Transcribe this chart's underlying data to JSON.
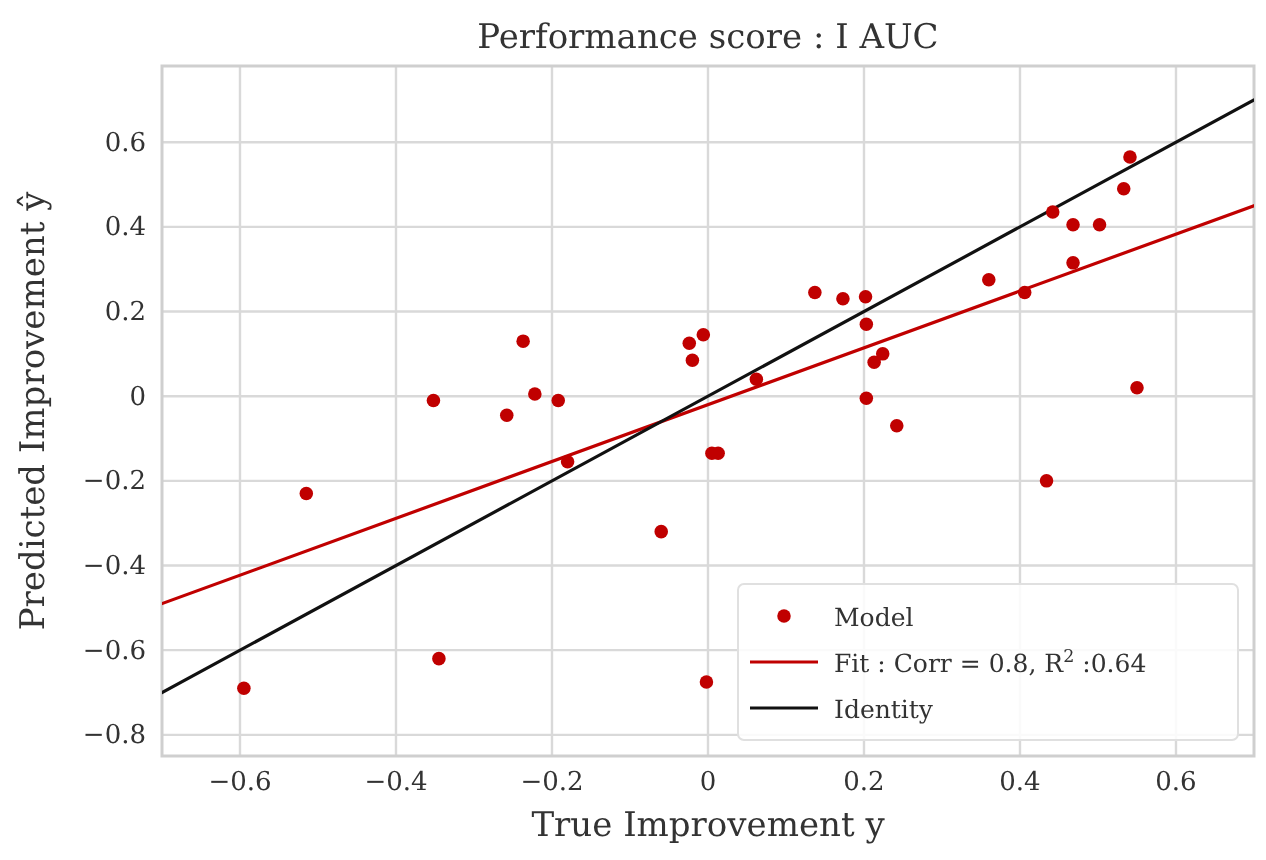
{
  "chart_data": {
    "type": "scatter",
    "title": "Performance score : I AUC",
    "xlabel": "True Improvement y",
    "ylabel": "Predicted Improvement ŷ",
    "xlim": [
      -0.7,
      0.7
    ],
    "ylim": [
      -0.85,
      0.78
    ],
    "xticks": [
      -0.6,
      -0.4,
      -0.2,
      0,
      0.2,
      0.4,
      0.6
    ],
    "yticks": [
      -0.8,
      -0.6,
      -0.4,
      -0.2,
      0,
      0.2,
      0.4,
      0.6
    ],
    "grid": true,
    "legend": "bottom right",
    "line_style": "solid",
    "series": [
      {
        "name": "Model",
        "marker": "circle",
        "color": "#c00000",
        "x": [
          -0.595,
          -0.515,
          -0.352,
          -0.345,
          -0.258,
          -0.237,
          -0.222,
          -0.192,
          -0.18,
          -0.06,
          -0.024,
          -0.02,
          -0.006,
          -0.002,
          0.005,
          0.013,
          0.062,
          0.137,
          0.173,
          0.202,
          0.203,
          0.203,
          0.213,
          0.224,
          0.242,
          0.36,
          0.406,
          0.434,
          0.442,
          0.468,
          0.468,
          0.502,
          0.533,
          0.541,
          0.55
        ],
        "values": [
          -0.69,
          -0.23,
          -0.01,
          -0.62,
          -0.045,
          0.13,
          0.005,
          -0.01,
          -0.155,
          -0.32,
          0.125,
          0.085,
          0.145,
          -0.675,
          -0.135,
          -0.135,
          0.04,
          0.245,
          0.23,
          0.235,
          0.17,
          -0.005,
          0.08,
          0.1,
          -0.07,
          0.275,
          0.245,
          -0.2,
          0.435,
          0.405,
          0.315,
          0.405,
          0.49,
          0.565,
          0.02
        ]
      },
      {
        "name": "Fit : Corr = 0.8, R$^{2}$ :0.64",
        "type": "line",
        "marker": "none",
        "color": "#c00000",
        "x": [
          -0.7,
          0.7
        ],
        "values": [
          -0.49,
          0.45
        ]
      },
      {
        "name": "Identity",
        "type": "line",
        "marker": "none",
        "color": "#111111",
        "x": [
          -0.7,
          0.7
        ],
        "values": [
          -0.7,
          0.7
        ]
      }
    ]
  }
}
